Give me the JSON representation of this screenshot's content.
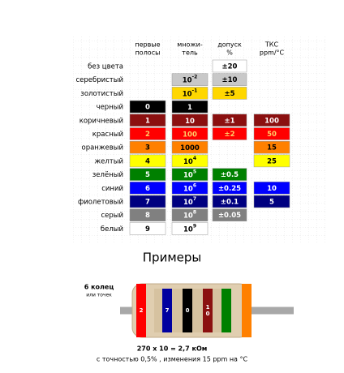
{
  "header": [
    [
      "первые",
      "полосы"
    ],
    [
      "множи-",
      "тель"
    ],
    [
      "допуск",
      "%"
    ],
    [
      "ТКС",
      "ppm/°C"
    ]
  ],
  "rows": [
    {
      "name": "без цвета",
      "color": "#ffffff",
      "ink": "#000000",
      "digit": null,
      "mult": null,
      "tol": "±20",
      "tcr": null
    },
    {
      "name": "серебристый",
      "color": "#c8c8c8",
      "ink": "#000000",
      "digit": null,
      "mult": {
        "base": "10",
        "exp": "-2"
      },
      "tol": "±10",
      "tcr": null
    },
    {
      "name": "золотистый",
      "color": "#ffd700",
      "ink": "#000000",
      "digit": null,
      "mult": {
        "base": "10",
        "exp": "-1"
      },
      "tol": "±5",
      "tcr": null
    },
    {
      "name": "черный",
      "color": "#000000",
      "ink": "#ffffff",
      "digit": "0",
      "mult": {
        "base": "1",
        "exp": null
      },
      "tol": null,
      "tcr": null
    },
    {
      "name": "коричневый",
      "color": "#8b1010",
      "ink": "#ffffff",
      "digit": "1",
      "mult": {
        "base": "10",
        "exp": null
      },
      "tol": "±1",
      "tcr": "100"
    },
    {
      "name": "красный",
      "color": "#ff0000",
      "ink": "#ffcc66",
      "digit": "2",
      "mult": {
        "base": "100",
        "exp": null
      },
      "tol": "±2",
      "tcr": "50"
    },
    {
      "name": "оранжевый",
      "color": "#ff8000",
      "ink": "#000000",
      "digit": "3",
      "mult": {
        "base": "1000",
        "exp": null
      },
      "tol": null,
      "tcr": "15"
    },
    {
      "name": "желтый",
      "color": "#ffff00",
      "ink": "#000000",
      "digit": "4",
      "mult": {
        "base": "10",
        "exp": "4"
      },
      "tol": null,
      "tcr": "25"
    },
    {
      "name": "зелёный",
      "color": "#008000",
      "ink": "#ffffff",
      "digit": "5",
      "mult": {
        "base": "10",
        "exp": "5"
      },
      "tol": "±0.5",
      "tcr": null
    },
    {
      "name": "синий",
      "color": "#0000ff",
      "ink": "#ffffff",
      "digit": "6",
      "mult": {
        "base": "10",
        "exp": "6"
      },
      "tol": "±0.25",
      "tcr": "10"
    },
    {
      "name": "фиолетовый",
      "color": "#000080",
      "ink": "#ffffff",
      "digit": "7",
      "mult": {
        "base": "10",
        "exp": "7"
      },
      "tol": "±0.1",
      "tcr": "5"
    },
    {
      "name": "серый",
      "color": "#808080",
      "ink": "#ffffff",
      "digit": "8",
      "mult": {
        "base": "10",
        "exp": "8"
      },
      "tol": "±0.05",
      "tcr": null
    },
    {
      "name": "белый",
      "color": "#ffffff",
      "ink": "#000000",
      "digit": "9",
      "mult": {
        "base": "10",
        "exp": "9"
      },
      "tol": null,
      "tcr": null
    }
  ],
  "example": {
    "title": "Примеры",
    "rings": "6 колец",
    "rings_note": "или точек",
    "bands": [
      {
        "color": "#ff0000",
        "label": [
          "2"
        ]
      },
      {
        "color": "#0000a0",
        "label": [
          "7"
        ]
      },
      {
        "color": "#000000",
        "label": [
          "0"
        ]
      },
      {
        "color": "#8b1010",
        "label": [
          "1",
          "0"
        ]
      },
      {
        "color": "#008000",
        "label": null
      },
      {
        "color": "#ff8000",
        "label": null
      }
    ],
    "formula": "270 x 10 = 2,7 кОм",
    "note": "с точностью 0,5% , изменения 15 ppm на °C"
  }
}
